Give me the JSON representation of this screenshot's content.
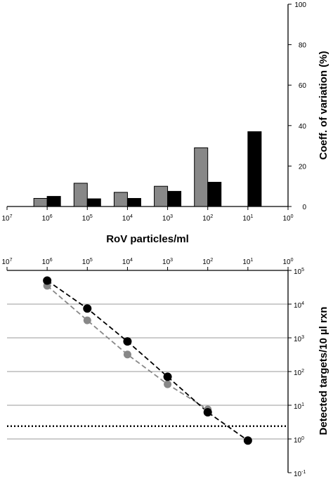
{
  "chart_data": [
    {
      "type": "bar",
      "xlabel": "RoV particles/ml",
      "ylabel": "Coeff. of variation (%)",
      "x_scale": "log",
      "x_reversed": true,
      "xlim": [
        10000000,
        1
      ],
      "ylim": [
        0,
        100
      ],
      "y_ticks": [
        0,
        20,
        40,
        60,
        80,
        100
      ],
      "x_tick_labels": [
        {
          "base": "10",
          "exp": "7",
          "value": 10000000
        },
        {
          "base": "10",
          "exp": "6",
          "value": 1000000
        },
        {
          "base": "10",
          "exp": "5",
          "value": 100000
        },
        {
          "base": "10",
          "exp": "4",
          "value": 10000
        },
        {
          "base": "10",
          "exp": "3",
          "value": 1000
        },
        {
          "base": "10",
          "exp": "2",
          "value": 100
        },
        {
          "base": "10",
          "exp": "1",
          "value": 10
        },
        {
          "base": "10",
          "exp": "0",
          "value": 1
        }
      ],
      "categories": [
        1000000,
        100000,
        10000,
        1000,
        100,
        10
      ],
      "series": [
        {
          "color": "#888888",
          "values": [
            4,
            11.5,
            7,
            10,
            29,
            null
          ]
        },
        {
          "color": "#000000",
          "values": [
            5,
            3.8,
            4,
            7.5,
            12,
            37
          ]
        }
      ],
      "grid": false
    },
    {
      "type": "scatter",
      "ylabel": "Detected targets/10 µl rxn",
      "x_scale": "log",
      "y_scale": "log",
      "x_reversed": true,
      "xlim": [
        10000000,
        1
      ],
      "ylim": [
        0.1,
        100000
      ],
      "x_tick_labels": [
        {
          "base": "10",
          "exp": "7",
          "value": 10000000
        },
        {
          "base": "10",
          "exp": "6",
          "value": 1000000
        },
        {
          "base": "10",
          "exp": "5",
          "value": 100000
        },
        {
          "base": "10",
          "exp": "4",
          "value": 10000
        },
        {
          "base": "10",
          "exp": "3",
          "value": 1000
        },
        {
          "base": "10",
          "exp": "2",
          "value": 100
        },
        {
          "base": "10",
          "exp": "1",
          "value": 10
        },
        {
          "base": "10",
          "exp": "0",
          "value": 1
        }
      ],
      "y_tick_labels": [
        {
          "base": "10",
          "exp": "5",
          "value": 100000
        },
        {
          "base": "10",
          "exp": "4",
          "value": 10000
        },
        {
          "base": "10",
          "exp": "3",
          "value": 1000
        },
        {
          "base": "10",
          "exp": "2",
          "value": 100
        },
        {
          "base": "10",
          "exp": "1",
          "value": 10
        },
        {
          "base": "10",
          "exp": "0",
          "value": 1
        },
        {
          "base": "10",
          "exp": "-1",
          "value": 0.1
        }
      ],
      "series": [
        {
          "color": "#888888",
          "x": [
            1000000,
            100000,
            10000,
            1000,
            100
          ],
          "y": [
            35000,
            3300,
            320,
            42,
            7.5
          ]
        },
        {
          "color": "#000000",
          "x": [
            1000000,
            100000,
            10000,
            1000,
            100,
            10
          ],
          "y": [
            50000,
            7400,
            780,
            70,
            6.2,
            0.9
          ]
        }
      ],
      "reference_line_y": 2.4,
      "grid": "horizontal"
    }
  ]
}
